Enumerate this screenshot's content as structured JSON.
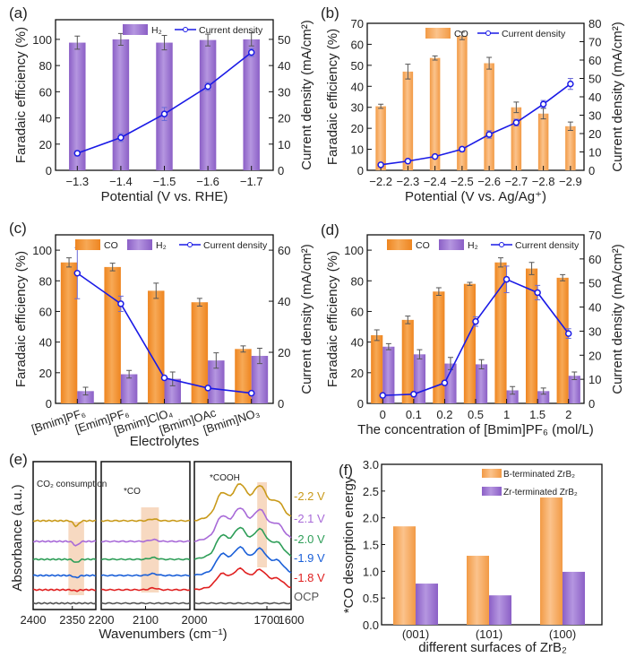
{
  "colors": {
    "co": "#f5a04a",
    "co_dark": "#ef8a25",
    "h2": "#a57fd4",
    "h2_dark": "#8c62c4",
    "line": "#1a1ae6",
    "err": "#555555",
    "highlight": "#f6d2b6",
    "v22": "#c99a1a",
    "v21": "#a86ad8",
    "v20": "#2e9e58",
    "v19": "#1a5fd8",
    "v18": "#e02020",
    "ocp": "#555555"
  },
  "chart_data": [
    {
      "id": "a",
      "panel_label": "(a)",
      "type": "bar+line",
      "categories": [
        "−1.3",
        "−1.4",
        "−1.5",
        "−1.6",
        "−1.7"
      ],
      "xlabel": "Potential (V vs. RHE)",
      "ylabel": "Faradaic efficiency (%)",
      "y2label": "Current density (mA/cm²)",
      "ylim": [
        0,
        115
      ],
      "yticks": [
        0,
        20,
        40,
        60,
        80,
        100
      ],
      "y2lim": [
        0,
        57.5
      ],
      "y2ticks": [
        0,
        10,
        20,
        30,
        40,
        50
      ],
      "series": [
        {
          "name": "H₂",
          "kind": "bar",
          "color_key": "h2",
          "values": [
            97.5,
            100,
            97.5,
            99.5,
            100
          ],
          "errors": [
            5,
            4.5,
            5.5,
            4.5,
            5
          ]
        }
      ],
      "line": {
        "name": "Current density",
        "values": [
          6.5,
          12.5,
          21.5,
          32,
          45
        ],
        "errors": [
          1,
          1.5,
          2.5,
          1.5,
          1.5
        ]
      },
      "legend": [
        "H₂",
        "Current density"
      ]
    },
    {
      "id": "b",
      "panel_label": "(b)",
      "type": "bar+line",
      "categories": [
        "−2.2",
        "−2.3",
        "−2.4",
        "−2.5",
        "−2.6",
        "−2.7",
        "−2.8",
        "−2.9"
      ],
      "xlabel": "Potential (V vs. Ag/Ag⁺)",
      "ylabel": "Faradaic efficiency (%)",
      "y2label": "Current density (mA/cm²)",
      "ylim": [
        0,
        70
      ],
      "yticks": [
        0,
        10,
        20,
        30,
        40,
        50,
        60,
        70
      ],
      "y2lim": [
        0,
        80
      ],
      "y2ticks": [
        0,
        10,
        20,
        30,
        40,
        50,
        60,
        70,
        80
      ],
      "series": [
        {
          "name": "CO",
          "kind": "bar",
          "color_key": "co",
          "values": [
            30.5,
            47,
            53.5,
            64,
            51,
            30,
            27,
            21
          ],
          "errors": [
            1,
            3.5,
            1,
            1.8,
            2.8,
            2.5,
            2.5,
            2
          ]
        }
      ],
      "line": {
        "name": "Current density",
        "values": [
          3,
          5,
          7.5,
          11.5,
          19.5,
          26,
          36,
          47
        ],
        "errors": [
          0.5,
          0.5,
          0.8,
          1.2,
          2,
          1.8,
          2,
          3
        ]
      },
      "legend": [
        "CO",
        "Current density"
      ]
    },
    {
      "id": "c",
      "panel_label": "(c)",
      "type": "bar+line",
      "categories": [
        "[Bmim]PF₆",
        "[Emim]PF₆",
        "[Bmim]ClO₄",
        "[Bmim]OAc",
        "[Bmim]NO₃"
      ],
      "xlabel": "Electrolytes",
      "ylabel": "Faradaic efficiency (%)",
      "y2label": "Current density (mA/cm²)",
      "ylim": [
        0,
        110
      ],
      "yticks": [
        0,
        20,
        40,
        60,
        80,
        100
      ],
      "y2lim": [
        0,
        66
      ],
      "y2ticks": [
        0,
        20,
        40,
        60
      ],
      "series": [
        {
          "name": "CO",
          "kind": "bar",
          "color_key": "co_dark",
          "values": [
            92,
            89,
            73.5,
            66,
            35.5
          ],
          "errors": [
            3,
            2.5,
            5,
            2.5,
            2
          ]
        },
        {
          "name": "H₂",
          "kind": "bar",
          "color_key": "h2",
          "values": [
            8,
            19,
            16,
            28,
            31
          ],
          "errors": [
            2.5,
            2.5,
            4.5,
            5,
            5
          ]
        }
      ],
      "line": {
        "name": "Current density",
        "values": [
          51,
          39,
          10,
          6,
          4
        ],
        "errors": [
          10,
          3,
          0,
          0,
          0
        ]
      },
      "legend": [
        "CO",
        "H₂",
        "Current density"
      ]
    },
    {
      "id": "d",
      "panel_label": "(d)",
      "type": "bar+line",
      "categories": [
        "0",
        "0.1",
        "0.2",
        "0.5",
        "1",
        "1.5",
        "2"
      ],
      "xlabel": "The concentration of [Bmim]PF₆ (mol/L)",
      "ylabel": "Faradaic efficiency (%)",
      "y2label": "Current density (mA/cm²)",
      "ylim": [
        0,
        110
      ],
      "yticks": [
        0,
        20,
        40,
        60,
        80,
        100
      ],
      "y2lim": [
        0,
        70
      ],
      "y2ticks": [
        0,
        10,
        20,
        30,
        40,
        50,
        60,
        70
      ],
      "series": [
        {
          "name": "CO",
          "kind": "bar",
          "color_key": "co_dark",
          "values": [
            44.5,
            54.5,
            73,
            78,
            92,
            88,
            82
          ],
          "errors": [
            3.5,
            2.5,
            2.5,
            1,
            3,
            4,
            2
          ]
        },
        {
          "name": "H₂",
          "kind": "bar",
          "color_key": "h2",
          "values": [
            37,
            32,
            26,
            25.5,
            8.5,
            8,
            18
          ],
          "errors": [
            2,
            3,
            4,
            3,
            2.5,
            2,
            2.5
          ]
        }
      ],
      "line": {
        "name": "Current density",
        "values": [
          3.3,
          3.8,
          8.5,
          34,
          51.5,
          46,
          29
        ],
        "errors": [
          0.3,
          0.3,
          0.5,
          2,
          5.5,
          3,
          2
        ]
      },
      "legend": [
        "CO",
        "H₂",
        "Current density"
      ]
    },
    {
      "id": "e",
      "panel_label": "(e)",
      "type": "line",
      "xlabel": "Wavenumbers (cm⁻¹)",
      "ylabel": "Absorbance (a.u.)",
      "panels": [
        {
          "annotation": "CO₂ consumption",
          "xlim": [
            2400,
            2320
          ],
          "xticks": [
            "2400",
            "2350"
          ],
          "highlight": [
            2355,
            2335
          ]
        },
        {
          "annotation": "*CO",
          "xlim": [
            2200,
            2000
          ],
          "xticks": [
            "2200",
            "2100"
          ],
          "highlight": [
            2110,
            2070
          ]
        },
        {
          "annotation": "*COOH",
          "xlim": [
            2000,
            1600
          ],
          "xticks": [
            "2000",
            "1700",
            "1600"
          ],
          "highlight": [
            1740,
            1700
          ]
        }
      ],
      "traces": [
        {
          "name": "-2.2 V",
          "color_key": "v22"
        },
        {
          "name": "-2.1 V",
          "color_key": "v21"
        },
        {
          "name": "-2.0 V",
          "color_key": "v20"
        },
        {
          "name": "-1.9 V",
          "color_key": "v19"
        },
        {
          "name": "-1.8 V",
          "color_key": "v18"
        },
        {
          "name": "OCP",
          "color_key": "ocp"
        }
      ]
    },
    {
      "id": "f",
      "panel_label": "(f)",
      "type": "bar",
      "categories": [
        "(001)",
        "(101)",
        "(100)"
      ],
      "xlabel": "different surfaces of ZrB₂",
      "ylabel": "*CO desorption energy",
      "ylim": [
        0,
        3.0
      ],
      "yticks": [
        "0.0",
        "0.5",
        "1.0",
        "1.5",
        "2.0",
        "2.5",
        "3.0"
      ],
      "series": [
        {
          "name": "B-terminated ZrB₂",
          "color_key": "co",
          "values": [
            1.84,
            1.29,
            2.38
          ]
        },
        {
          "name": "Zr-terminated ZrB₂",
          "color_key": "h2",
          "values": [
            0.77,
            0.55,
            0.99
          ]
        }
      ],
      "legend": [
        "B-terminated ZrB₂",
        "Zr-terminated ZrB₂"
      ]
    }
  ]
}
